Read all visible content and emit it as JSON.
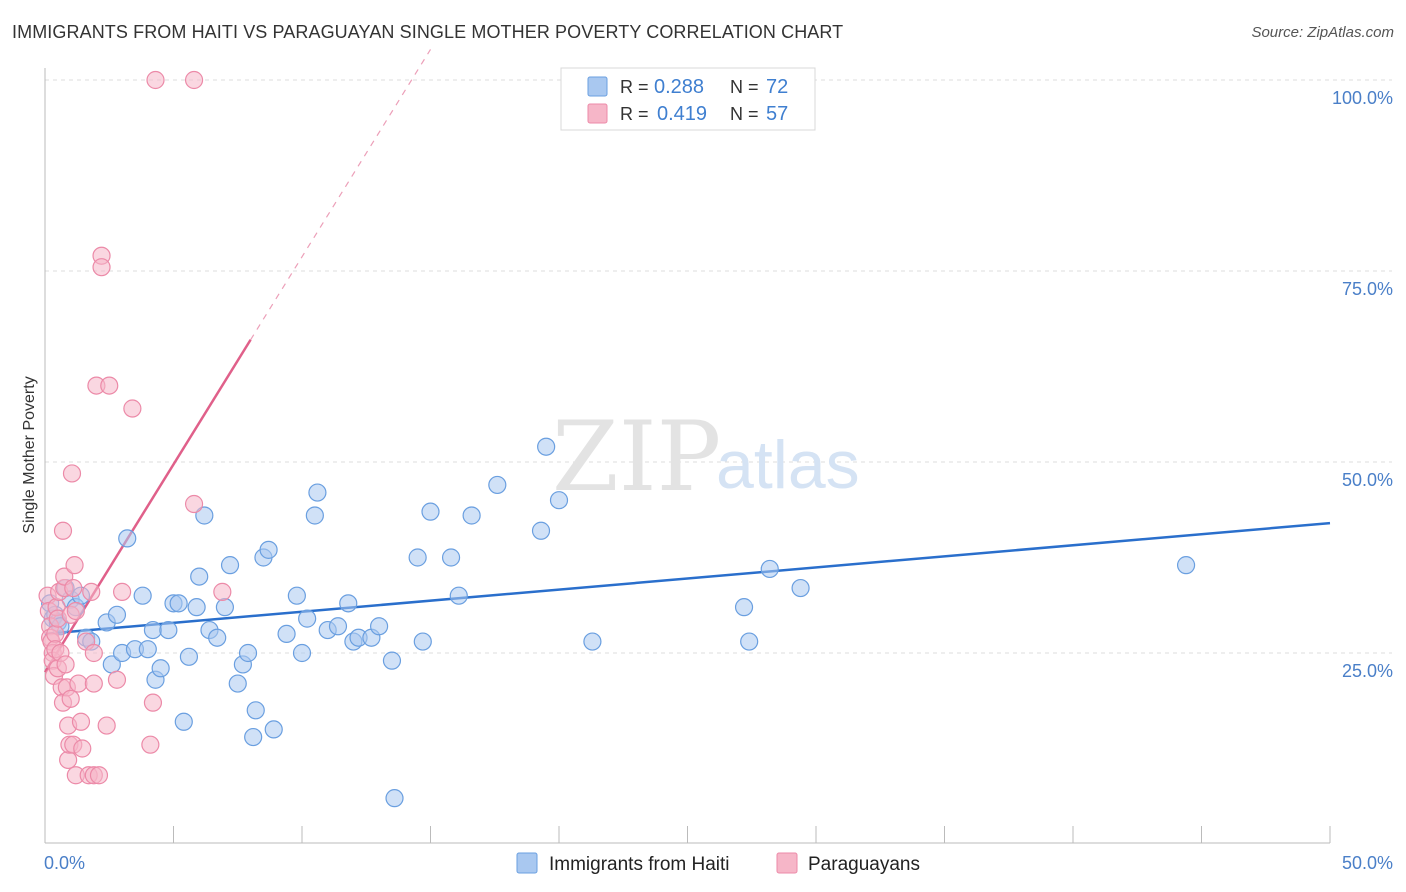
{
  "title": "IMMIGRANTS FROM HAITI VS PARAGUAYAN SINGLE MOTHER POVERTY CORRELATION CHART",
  "source": "Source: ZipAtlas.com",
  "watermark": {
    "zip": "ZIP",
    "atlas": "atlas"
  },
  "colors": {
    "blue_fill": "#a9c8f0",
    "blue_stroke": "#6a9fe0",
    "blue_line": "#2a6fcc",
    "pink_fill": "#f6b6c8",
    "pink_stroke": "#ec8aa8",
    "pink_line": "#e0608a",
    "grid": "#dddddd",
    "tick_label": "#4a7fc8"
  },
  "chart_data": {
    "type": "scatter",
    "title": "IMMIGRANTS FROM HAITI VS PARAGUAYAN SINGLE MOTHER POVERTY CORRELATION CHART",
    "xlabel": "",
    "ylabel": "Single Mother Poverty",
    "xlim": [
      0,
      50
    ],
    "ylim": [
      0,
      102
    ],
    "x_tick_labels": [
      "0.0%",
      "50.0%"
    ],
    "y_ticks": [
      {
        "value": 25,
        "label": "25.0%"
      },
      {
        "value": 50,
        "label": "50.0%"
      },
      {
        "value": 75,
        "label": "75.0%"
      },
      {
        "value": 100,
        "label": "100.0%"
      }
    ],
    "legend": [
      {
        "series": "Immigrants from Haiti",
        "r_label": "R =",
        "r_value": "0.288",
        "n_label": "N =",
        "n_value": "72"
      },
      {
        "series": "Paraguayans",
        "r_label": "R =",
        "r_value": "0.419",
        "n_label": "N =",
        "n_value": "57"
      }
    ],
    "series": [
      {
        "name": "Immigrants from Haiti",
        "color": "blue",
        "trend": {
          "x0": 0,
          "y0": 27.5,
          "x1": 50,
          "y1": 42.0
        },
        "points": [
          [
            0.2,
            31.5
          ],
          [
            0.3,
            29.5
          ],
          [
            0.4,
            30.0
          ],
          [
            0.5,
            29.0
          ],
          [
            0.6,
            28.5
          ],
          [
            0.8,
            33.5
          ],
          [
            1.0,
            32.0
          ],
          [
            1.2,
            31.0
          ],
          [
            1.4,
            32.5
          ],
          [
            1.6,
            27.0
          ],
          [
            1.8,
            26.5
          ],
          [
            2.4,
            29.0
          ],
          [
            2.6,
            23.5
          ],
          [
            2.8,
            30.0
          ],
          [
            3.0,
            25.0
          ],
          [
            3.2,
            40.0
          ],
          [
            3.5,
            25.5
          ],
          [
            3.8,
            32.5
          ],
          [
            4.0,
            25.5
          ],
          [
            4.2,
            28.0
          ],
          [
            4.3,
            21.5
          ],
          [
            4.5,
            23.0
          ],
          [
            4.8,
            28.0
          ],
          [
            5.0,
            31.5
          ],
          [
            5.2,
            31.5
          ],
          [
            5.4,
            16.0
          ],
          [
            5.6,
            24.5
          ],
          [
            5.9,
            31.0
          ],
          [
            6.0,
            35.0
          ],
          [
            6.2,
            43.0
          ],
          [
            6.4,
            28.0
          ],
          [
            6.7,
            27.0
          ],
          [
            7.0,
            31.0
          ],
          [
            7.2,
            36.5
          ],
          [
            7.5,
            21.0
          ],
          [
            7.7,
            23.5
          ],
          [
            7.9,
            25.0
          ],
          [
            8.2,
            17.5
          ],
          [
            8.1,
            14.0
          ],
          [
            8.5,
            37.5
          ],
          [
            8.7,
            38.5
          ],
          [
            8.9,
            15.0
          ],
          [
            9.4,
            27.5
          ],
          [
            9.8,
            32.5
          ],
          [
            10.0,
            25.0
          ],
          [
            10.2,
            29.5
          ],
          [
            10.5,
            43.0
          ],
          [
            10.6,
            46.0
          ],
          [
            11.0,
            28.0
          ],
          [
            11.4,
            28.5
          ],
          [
            11.8,
            31.5
          ],
          [
            12.0,
            26.5
          ],
          [
            12.2,
            27.0
          ],
          [
            12.7,
            27.0
          ],
          [
            13.0,
            28.5
          ],
          [
            13.5,
            24.0
          ],
          [
            13.6,
            6.0
          ],
          [
            14.5,
            37.5
          ],
          [
            14.7,
            26.5
          ],
          [
            15.0,
            43.5
          ],
          [
            15.8,
            37.5
          ],
          [
            16.1,
            32.5
          ],
          [
            16.6,
            43.0
          ],
          [
            17.6,
            47.0
          ],
          [
            19.3,
            41.0
          ],
          [
            19.5,
            52.0
          ],
          [
            20.0,
            45.0
          ],
          [
            21.3,
            26.5
          ],
          [
            27.2,
            31.0
          ],
          [
            27.4,
            26.5
          ],
          [
            28.2,
            36.0
          ],
          [
            29.4,
            33.5
          ],
          [
            44.4,
            36.5
          ]
        ]
      },
      {
        "name": "Paraguayans",
        "color": "pink",
        "trend": {
          "x0": 0,
          "y0": 22.5,
          "x1": 8,
          "y1": 66.0
        },
        "trend_dashed": {
          "x0": 8,
          "y0": 66.0,
          "x1": 15,
          "y1": 104.0
        },
        "points": [
          [
            0.1,
            32.5
          ],
          [
            0.15,
            30.5
          ],
          [
            0.2,
            28.5
          ],
          [
            0.2,
            27.0
          ],
          [
            0.25,
            26.5
          ],
          [
            0.3,
            25.0
          ],
          [
            0.3,
            24.0
          ],
          [
            0.35,
            22.0
          ],
          [
            0.4,
            27.5
          ],
          [
            0.4,
            25.5
          ],
          [
            0.45,
            31.0
          ],
          [
            0.5,
            29.5
          ],
          [
            0.5,
            23.0
          ],
          [
            0.55,
            33.0
          ],
          [
            0.6,
            25.0
          ],
          [
            0.65,
            20.5
          ],
          [
            0.7,
            18.5
          ],
          [
            0.7,
            41.0
          ],
          [
            0.75,
            33.5
          ],
          [
            0.75,
            35.0
          ],
          [
            0.8,
            23.5
          ],
          [
            0.85,
            20.5
          ],
          [
            0.9,
            11.0
          ],
          [
            0.9,
            15.5
          ],
          [
            0.95,
            13.0
          ],
          [
            1.0,
            30.0
          ],
          [
            1.0,
            19.0
          ],
          [
            1.05,
            48.5
          ],
          [
            1.1,
            33.5
          ],
          [
            1.1,
            13.0
          ],
          [
            1.15,
            36.5
          ],
          [
            1.2,
            9.0
          ],
          [
            1.2,
            30.5
          ],
          [
            1.3,
            21.0
          ],
          [
            1.4,
            16.0
          ],
          [
            1.45,
            12.5
          ],
          [
            1.6,
            26.5
          ],
          [
            1.7,
            9.0
          ],
          [
            1.8,
            33.0
          ],
          [
            1.9,
            9.0
          ],
          [
            1.9,
            25.0
          ],
          [
            1.9,
            21.0
          ],
          [
            2.0,
            60.0
          ],
          [
            2.1,
            9.0
          ],
          [
            2.2,
            77.0
          ],
          [
            2.2,
            75.5
          ],
          [
            2.4,
            15.5
          ],
          [
            2.5,
            60.0
          ],
          [
            2.8,
            21.5
          ],
          [
            3.0,
            33.0
          ],
          [
            3.4,
            57.0
          ],
          [
            4.1,
            13.0
          ],
          [
            4.2,
            18.5
          ],
          [
            4.3,
            100.0
          ],
          [
            5.8,
            44.5
          ],
          [
            5.8,
            100.0
          ],
          [
            6.9,
            33.0
          ]
        ]
      }
    ]
  }
}
